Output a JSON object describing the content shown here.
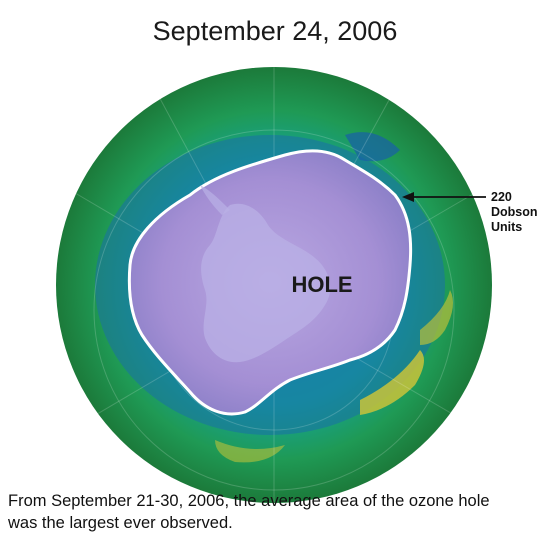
{
  "title": "September 24, 2006",
  "hole_label": "HOLE",
  "contour_label_lines": [
    "220",
    "Dobson",
    "Units"
  ],
  "caption_lines": [
    "From September 21-30, 2006, the average area of the ozone hole",
    "was the largest ever observed."
  ],
  "colors": {
    "hole": "#a896d6",
    "ozone_low": "#1e6fb0",
    "ozone_mid": "#1fae8a",
    "ozone_high": "#3aa03a",
    "ozone_peak": "#d8c83a",
    "contour": "#ffffff",
    "arrow": "#111111"
  }
}
